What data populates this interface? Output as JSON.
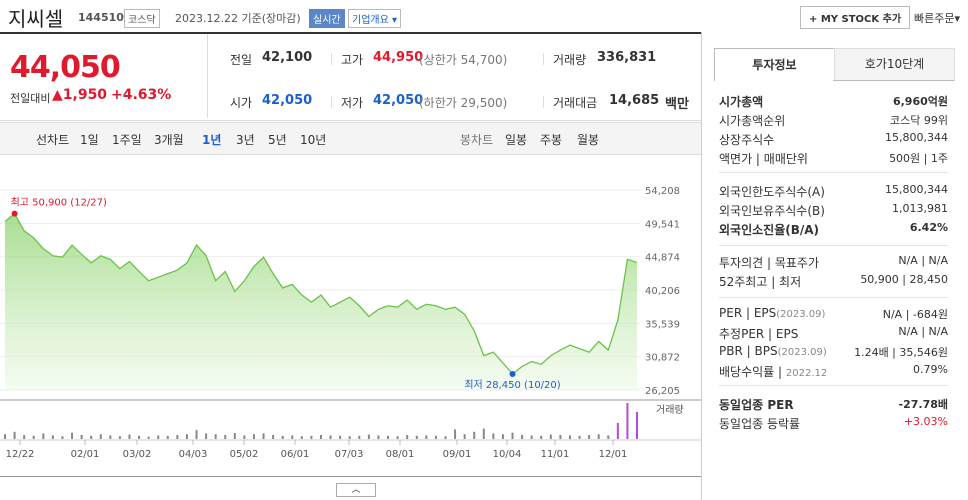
{
  "header": {
    "name": "지씨셀",
    "code": "144510",
    "market": "코스닥",
    "date": "2023.12.22 기준(장마감)",
    "realtime": "실시간",
    "overview": "기업개요",
    "mystock": "+ MY STOCK 추가",
    "quick_order": "빠른주문"
  },
  "quote": {
    "price": "44,050",
    "change_label": "전일대비",
    "change": "▲1,950",
    "change_pct": "+4.63%",
    "cells": [
      {
        "label": "전일",
        "value": "42,100"
      },
      {
        "label": "고가",
        "value": "44,950",
        "note": "(상한가 54,700)"
      },
      {
        "label": "거래량",
        "value": "336,831"
      },
      {
        "label": "시가",
        "value": "42,050"
      },
      {
        "label": "저가",
        "value": "42,050",
        "note": "(하한가 29,500)"
      },
      {
        "label": "거래대금",
        "value": "14,685",
        "unit": "백만"
      }
    ]
  },
  "tabs": {
    "line_chart": "선차트",
    "periods": [
      "1일",
      "1주일",
      "3개월",
      "1년",
      "3년",
      "5년",
      "10년"
    ],
    "selected": "1년",
    "candle_chart": "봉차트",
    "candles": [
      "일봉",
      "주봉",
      "월봉"
    ]
  },
  "chart_data": {
    "type": "line",
    "ylim": [
      26205,
      54208
    ],
    "yticks": [
      {
        "value": 26205,
        "label": "26,205"
      },
      {
        "value": 30872,
        "label": "30,872"
      },
      {
        "value": 35539,
        "label": "35,539"
      },
      {
        "value": 40206,
        "label": "40,206"
      },
      {
        "value": 44874,
        "label": "44,874"
      },
      {
        "value": 49541,
        "label": "49,541"
      },
      {
        "value": 54208,
        "label": "54,208"
      }
    ],
    "x_labels": [
      "12/22",
      "02/01",
      "03/02",
      "04/03",
      "05/02",
      "06/01",
      "07/03",
      "08/01",
      "09/01",
      "10/04",
      "11/01",
      "12/01"
    ],
    "color": "#6cc24a",
    "values": [
      49800,
      50900,
      48500,
      47500,
      46000,
      45000,
      44800,
      46500,
      45200,
      44000,
      45000,
      44500,
      43200,
      44200,
      42800,
      41500,
      42000,
      42500,
      43000,
      44000,
      46500,
      45000,
      41500,
      42800,
      40000,
      41500,
      43500,
      44800,
      42500,
      40500,
      41000,
      39500,
      38500,
      39500,
      37800,
      38500,
      39200,
      38000,
      36500,
      37500,
      38000,
      37800,
      38800,
      37500,
      38200,
      38000,
      37500,
      37800,
      36800,
      34500,
      31000,
      31500,
      30000,
      28450,
      29500,
      30200,
      29800,
      31000,
      31800,
      32500,
      32000,
      31500,
      33000,
      31800,
      36000,
      44500,
      44050
    ],
    "max_label": "최고 50,900 (12/27)",
    "min_label": "최저 28,450 (10/20)",
    "volume_label": "거래량",
    "volume": [
      60000,
      90000,
      50000,
      40000,
      70000,
      45000,
      35000,
      80000,
      50000,
      40000,
      60000,
      45000,
      35000,
      55000,
      40000,
      30000,
      45000,
      40000,
      50000,
      60000,
      110000,
      70000,
      60000,
      50000,
      75000,
      45000,
      60000,
      70000,
      50000,
      40000,
      45000,
      35000,
      40000,
      50000,
      45000,
      40000,
      35000,
      40000,
      55000,
      45000,
      40000,
      35000,
      50000,
      40000,
      45000,
      40000,
      35000,
      120000,
      60000,
      90000,
      130000,
      70000,
      60000,
      80000,
      50000,
      45000,
      40000,
      55000,
      50000,
      45000,
      40000,
      50000,
      60000,
      45000,
      200000,
      450000,
      336831
    ]
  },
  "invest": {
    "tabs": [
      "투자정보",
      "호가10단계"
    ],
    "sections": [
      [
        {
          "label": "시가총액",
          "value": "6,960억원",
          "bold": true
        },
        {
          "label": "시가총액순위",
          "value": "코스닥 99위"
        },
        {
          "label": "상장주식수",
          "value": "15,800,344"
        },
        {
          "label": "액면가 | 매매단위",
          "value": "500원 | 1주"
        }
      ],
      [
        {
          "label": "외국인한도주식수(A)",
          "value": "15,800,344"
        },
        {
          "label": "외국인보유주식수(B)",
          "value": "1,013,981"
        },
        {
          "label": "외국인소진율(B/A)",
          "value": "6.42%",
          "bold": true
        }
      ],
      [
        {
          "label": "투자의견 | 목표주가",
          "value": "N/A | N/A"
        },
        {
          "label": "52주최고 | 최저",
          "value": "50,900 | 28,450"
        }
      ],
      [
        {
          "label": "PER | EPS",
          "sub": "(2023.09)",
          "value": "N/A | -684원"
        },
        {
          "label": "추정PER | EPS",
          "value": "N/A | N/A"
        },
        {
          "label": "PBR | BPS",
          "sub": "(2023.09)",
          "value": "1.24배 | 35,546원"
        },
        {
          "label": "배당수익률 | ",
          "sub": "2022.12",
          "value": "0.79%"
        }
      ],
      [
        {
          "label": "동일업종 PER",
          "value": "-27.78배",
          "bold": true
        },
        {
          "label": "동일업종 등락률",
          "value": "+3.03%",
          "red": true
        }
      ]
    ]
  }
}
